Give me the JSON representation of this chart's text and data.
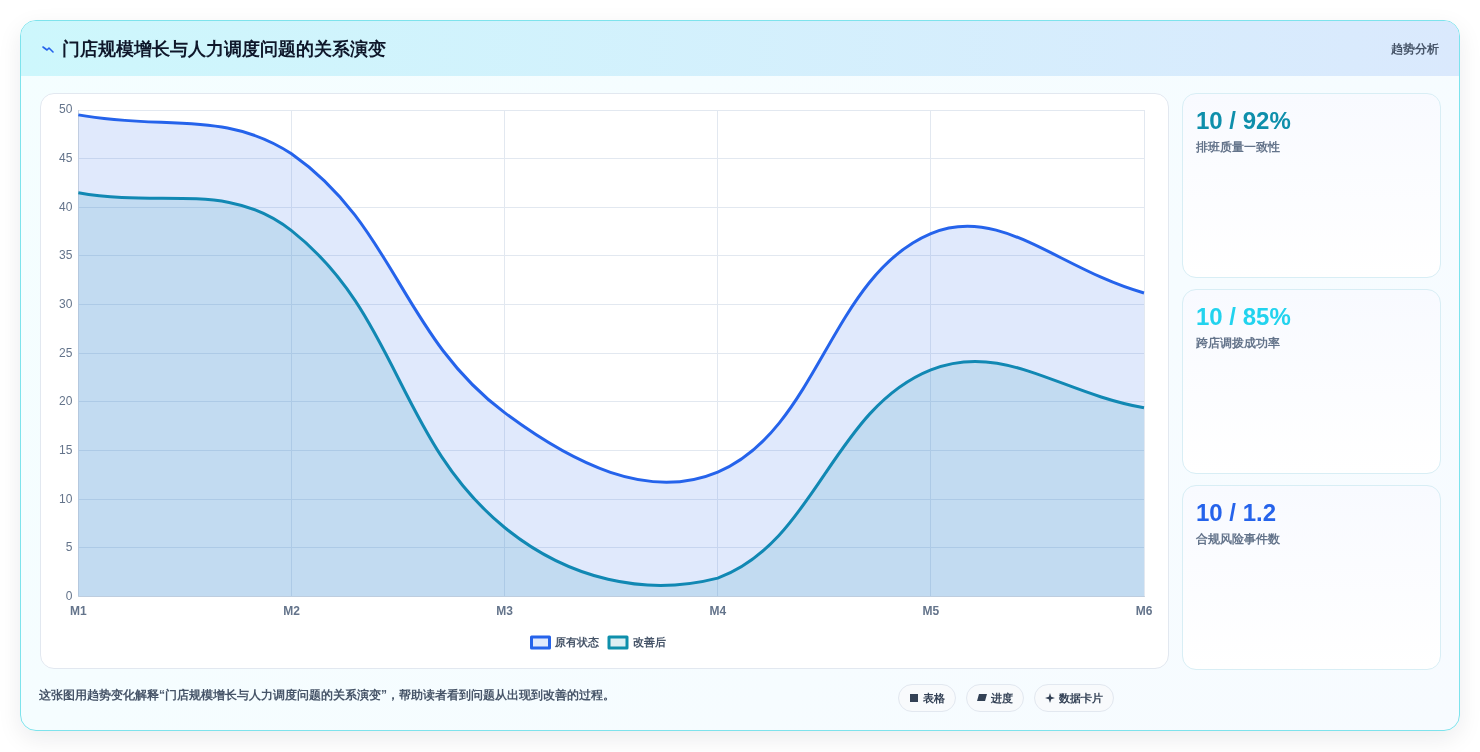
{
  "chart_data": [
    {
      "type": "area",
      "title": "门店规模增长与人力调度问题的关系演变",
      "categories": [
        "M1",
        "M2",
        "M3",
        "M4",
        "M5",
        "M6"
      ],
      "series": [
        {
          "name": "原有状态",
          "color": "#2563eb",
          "values": [
            49.5,
            45.5,
            18.9,
            12.8,
            37.3,
            31.2
          ]
        },
        {
          "name": "改善后",
          "color": "#0e8fab",
          "values": [
            41.5,
            37.6,
            7.1,
            1.9,
            23.3,
            19.4
          ]
        }
      ],
      "ylim": [
        0,
        50
      ],
      "yticks": [
        0,
        5,
        10,
        15,
        20,
        25,
        30,
        35,
        40,
        45,
        50
      ],
      "grid": true,
      "legend": "bottom",
      "annotations": [
        "趋势分析",
        "这张图用趋势变化解释“门店规模增长与人力调度问题的关系演变”，帮助读者看到问题从出现到改善的过程。",
        "表格",
        "进度",
        "数据卡片"
      ]
    },
    {
      "type": "other",
      "title": "10 / 92%",
      "subtitle": "排班质量一致性"
    },
    {
      "type": "other",
      "title": "10 / 85%",
      "subtitle": "跨店调拨成功率"
    },
    {
      "type": "other",
      "title": "10 / 1.2",
      "subtitle": "合规风险事件数"
    }
  ]
}
